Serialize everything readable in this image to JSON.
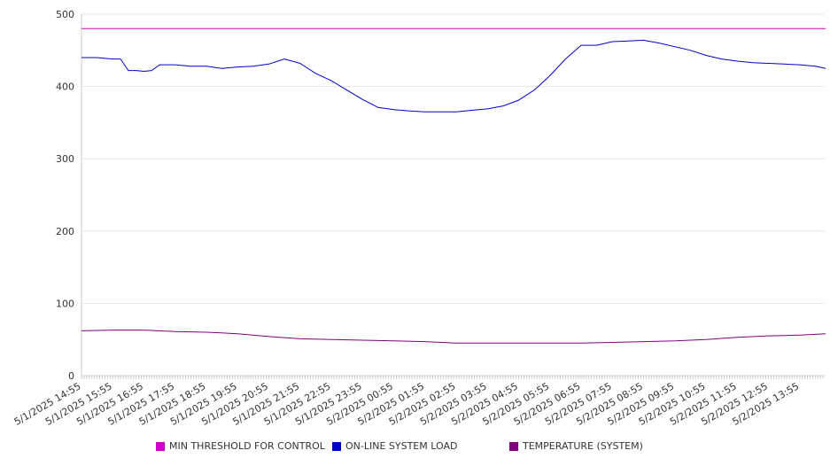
{
  "chart_data": {
    "type": "line",
    "ylim": [
      0,
      500
    ],
    "y_ticks": [
      0,
      100,
      200,
      300,
      400,
      500
    ],
    "grid": true,
    "legend_position": "bottom",
    "x_tick_labels": [
      "5/1/2025 14:55",
      "5/1/2025 15:55",
      "5/1/2025 16:55",
      "5/1/2025 17:55",
      "5/1/2025 18:55",
      "5/1/2025 19:55",
      "5/1/2025 20:55",
      "5/1/2025 21:55",
      "5/1/2025 22:55",
      "5/1/2025 23:55",
      "5/2/2025 00:55",
      "5/2/2025 01:55",
      "5/2/2025 02:55",
      "5/2/2025 03:55",
      "5/2/2025 04:55",
      "5/2/2025 05:55",
      "5/2/2025 06:55",
      "5/2/2025 07:55",
      "5/2/2025 08:55",
      "5/2/2025 09:55",
      "5/2/2025 10:55",
      "5/2/2025 11:55",
      "5/2/2025 12:55",
      "5/2/2025 13:55"
    ],
    "series": [
      {
        "name": "MIN THRESHOLD FOR CONTROL",
        "color": "#cc00cc",
        "x": [
          "5/1/2025 14:55",
          "5/2/2025 14:45"
        ],
        "y": [
          480,
          480
        ]
      },
      {
        "name": "ON-LINE SYSTEM LOAD",
        "color": "#0000cc",
        "x": [
          "5/1/2025 14:55",
          "5/1/2025 15:25",
          "5/1/2025 15:55",
          "5/1/2025 16:10",
          "5/1/2025 16:25",
          "5/1/2025 16:40",
          "5/1/2025 16:55",
          "5/1/2025 17:10",
          "5/1/2025 17:25",
          "5/1/2025 17:55",
          "5/1/2025 18:25",
          "5/1/2025 18:55",
          "5/1/2025 19:25",
          "5/1/2025 19:55",
          "5/1/2025 20:25",
          "5/1/2025 20:55",
          "5/1/2025 21:25",
          "5/1/2025 21:55",
          "5/1/2025 22:25",
          "5/1/2025 22:55",
          "5/1/2025 23:25",
          "5/1/2025 23:55",
          "5/2/2025 00:25",
          "5/2/2025 00:55",
          "5/2/2025 01:25",
          "5/2/2025 01:55",
          "5/2/2025 02:25",
          "5/2/2025 02:55",
          "5/2/2025 03:25",
          "5/2/2025 03:55",
          "5/2/2025 04:25",
          "5/2/2025 04:55",
          "5/2/2025 05:25",
          "5/2/2025 05:55",
          "5/2/2025 06:25",
          "5/2/2025 06:55",
          "5/2/2025 07:25",
          "5/2/2025 07:55",
          "5/2/2025 08:25",
          "5/2/2025 08:55",
          "5/2/2025 09:25",
          "5/2/2025 09:55",
          "5/2/2025 10:25",
          "5/2/2025 10:55",
          "5/2/2025 11:25",
          "5/2/2025 11:55",
          "5/2/2025 12:25",
          "5/2/2025 12:55",
          "5/2/2025 13:25",
          "5/2/2025 13:55",
          "5/2/2025 14:25",
          "5/2/2025 14:45"
        ],
        "y": [
          440,
          440,
          438,
          438,
          422,
          422,
          421,
          422,
          430,
          430,
          428,
          428,
          425,
          427,
          428,
          431,
          438,
          432,
          418,
          408,
          395,
          382,
          371,
          368,
          366,
          365,
          365,
          365,
          367,
          369,
          373,
          381,
          395,
          415,
          438,
          457,
          457,
          462,
          463,
          464,
          460,
          455,
          450,
          443,
          438,
          435,
          433,
          432,
          431,
          430,
          428,
          425
        ]
      },
      {
        "name": "TEMPERATURE (SYSTEM)",
        "color": "#800080",
        "x": [
          "5/1/2025 14:55",
          "5/1/2025 15:55",
          "5/1/2025 16:55",
          "5/1/2025 17:55",
          "5/1/2025 18:55",
          "5/1/2025 19:55",
          "5/1/2025 20:55",
          "5/1/2025 21:55",
          "5/1/2025 22:55",
          "5/1/2025 23:55",
          "5/2/2025 00:55",
          "5/2/2025 01:55",
          "5/2/2025 02:55",
          "5/2/2025 03:55",
          "5/2/2025 04:55",
          "5/2/2025 05:55",
          "5/2/2025 06:55",
          "5/2/2025 07:55",
          "5/2/2025 08:55",
          "5/2/2025 09:55",
          "5/2/2025 10:55",
          "5/2/2025 11:55",
          "5/2/2025 12:55",
          "5/2/2025 13:55",
          "5/2/2025 14:45"
        ],
        "y": [
          62,
          63,
          63,
          61,
          60,
          58,
          54,
          51,
          50,
          49,
          48,
          47,
          45,
          45,
          45,
          45,
          45,
          46,
          47,
          48,
          50,
          53,
          55,
          56,
          58
        ]
      }
    ]
  }
}
